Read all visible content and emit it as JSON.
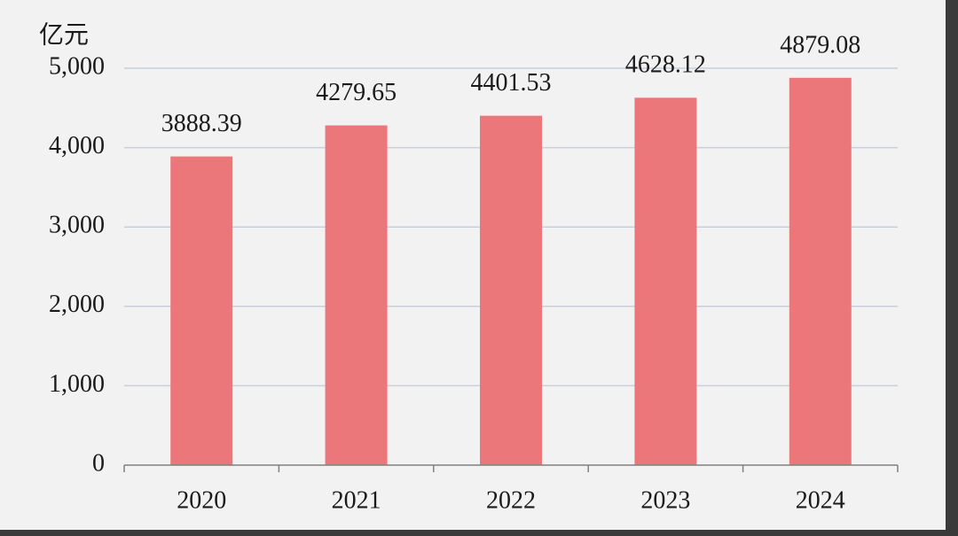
{
  "chart_data": {
    "type": "bar",
    "y_axis_label": "亿元",
    "categories": [
      "2020",
      "2021",
      "2022",
      "2023",
      "2024"
    ],
    "values": [
      3888.39,
      4279.65,
      4401.53,
      4628.12,
      4879.08
    ],
    "color": "#ec777b",
    "ylim": [
      0,
      5000
    ],
    "yticks": [
      0,
      {
        "value": 1000,
        "label": "1,000"
      },
      {
        "value": 2000,
        "label": "2,000"
      },
      {
        "value": 3000,
        "label": "3,000"
      },
      {
        "value": 4000,
        "label": "4,000"
      },
      {
        "value": 5000,
        "label": "5,000"
      }
    ],
    "grid": true
  }
}
